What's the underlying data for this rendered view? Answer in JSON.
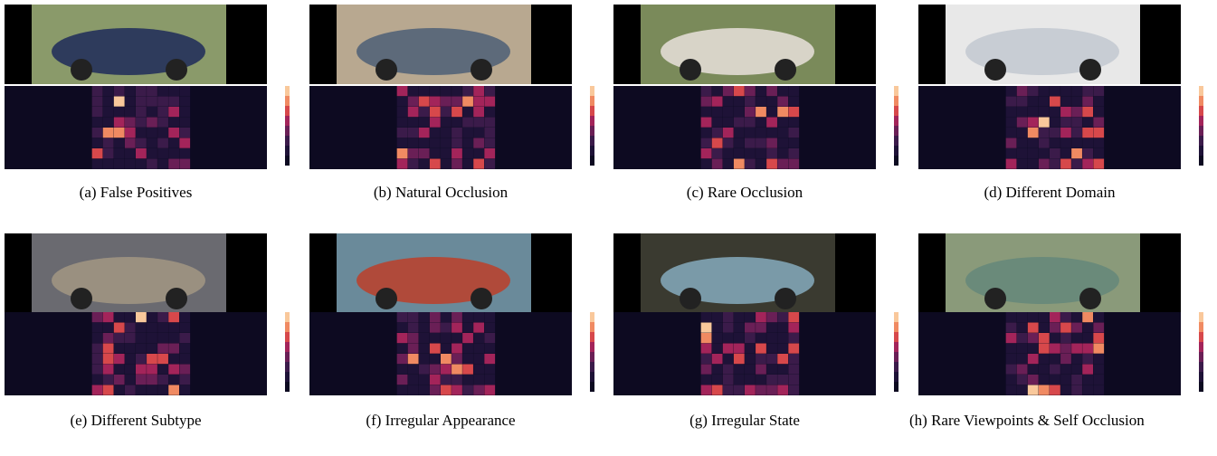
{
  "panels": [
    {
      "caption": "(a) False Positives"
    },
    {
      "caption": "(b) Natural Occlusion"
    },
    {
      "caption": "(c) Rare Occlusion"
    },
    {
      "caption": "(d) Different Domain"
    },
    {
      "caption": "(e) Different Subtype"
    },
    {
      "caption": "(f) Irregular Appearance"
    },
    {
      "caption": "(g) Irregular State"
    },
    {
      "caption": "(h) Rare Viewpoints & Self Occlusion"
    }
  ]
}
